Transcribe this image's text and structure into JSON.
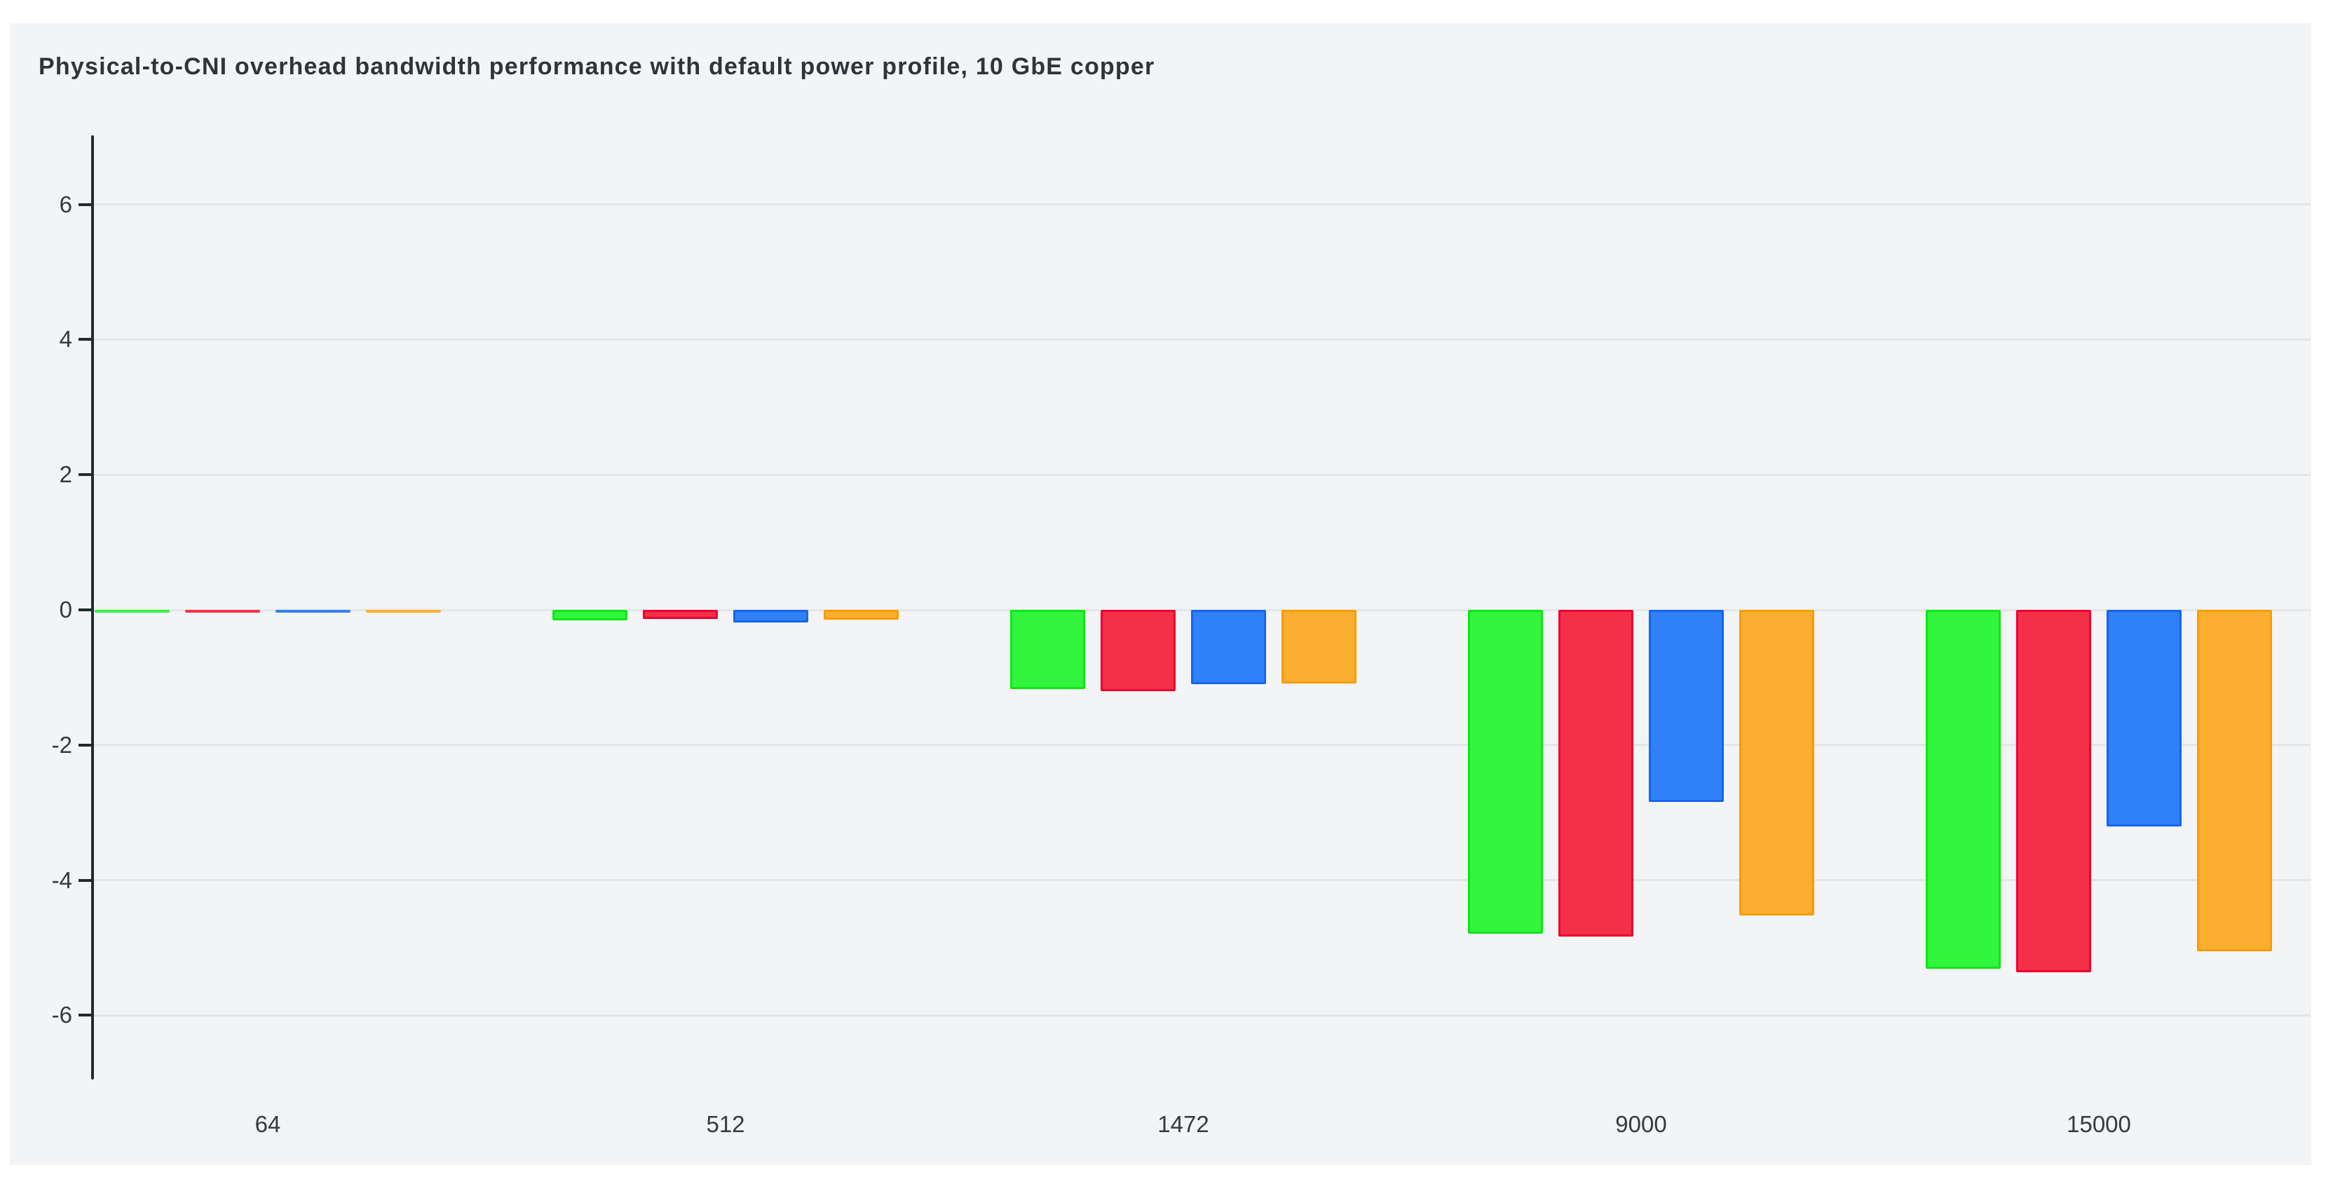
{
  "chart_data": {
    "type": "bar",
    "title": "Physical-to-CNI overhead bandwidth performance with default power profile, 10 GbE copper",
    "categories": [
      "64",
      "512",
      "1472",
      "9000",
      "15000"
    ],
    "series": [
      {
        "name": "green",
        "color": "#32f53e",
        "border_color": "#0ce815",
        "values": [
          -0.02,
          -0.16,
          -1.17,
          -4.79,
          -5.31
        ]
      },
      {
        "name": "red",
        "color": "#f43049",
        "border_color": "#ee0031",
        "values": [
          -0.03,
          -0.13,
          -1.2,
          -4.83,
          -5.36
        ]
      },
      {
        "name": "blue",
        "color": "#3080f8",
        "border_color": "#1566f0",
        "values": [
          -0.04,
          -0.19,
          -1.1,
          -2.84,
          -3.21
        ]
      },
      {
        "name": "orange",
        "color": "#fcae31",
        "border_color": "#f79d00",
        "values": [
          -0.03,
          -0.15,
          -1.09,
          -4.52,
          -5.05
        ]
      }
    ],
    "xlabel": "",
    "ylabel": "",
    "ylim": [
      -7,
      7
    ],
    "yticks": [
      6,
      4,
      2,
      0,
      -2,
      -4,
      -6
    ],
    "legend": "none",
    "grid": "horizontal"
  },
  "colors": {
    "page_background": "#ffffff",
    "panel_background": "#f3f4f5",
    "gridline": "#e3e5e8",
    "axis": "#23292e",
    "title_text": "#2e353a",
    "tick_text": "#333a40"
  }
}
